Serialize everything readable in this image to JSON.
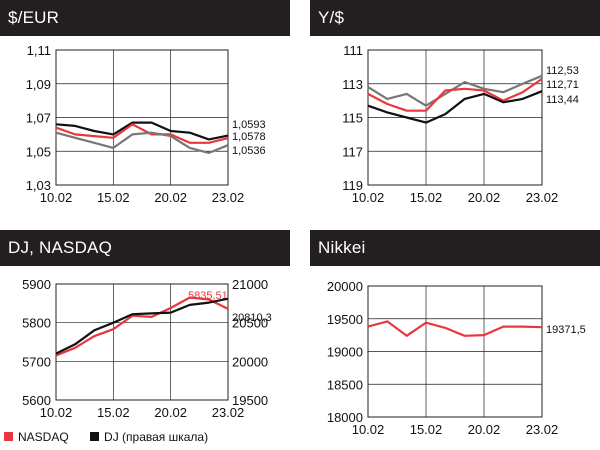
{
  "legend": {
    "nasdaq_label": "NASDAQ",
    "dj_label": "DJ (правая шкала)",
    "nasdaq_color": "#e8383d",
    "dj_color": "#111111"
  },
  "chart_data": [
    {
      "type": "line",
      "title": "$/EUR",
      "x_ticks": [
        "10.02",
        "15.02",
        "20.02",
        "23.02"
      ],
      "ylim": [
        1.03,
        1.11
      ],
      "y_ticks": [
        "1,11",
        "1,09",
        "1,07",
        "1,05",
        "1,03"
      ],
      "y_tick_values": [
        1.11,
        1.09,
        1.07,
        1.05,
        1.03
      ],
      "grid": true,
      "series": [
        {
          "color": "#111111",
          "x": [
            0,
            1,
            2,
            3,
            4,
            5,
            6,
            7,
            8,
            9
          ],
          "values": [
            1.066,
            1.065,
            1.062,
            1.06,
            1.067,
            1.067,
            1.062,
            1.061,
            1.057,
            1.0593
          ],
          "end_label": "1,0593"
        },
        {
          "color": "#e8383d",
          "x": [
            0,
            1,
            2,
            3,
            4,
            5,
            6,
            7,
            8,
            9
          ],
          "values": [
            1.064,
            1.06,
            1.059,
            1.058,
            1.066,
            1.06,
            1.06,
            1.055,
            1.055,
            1.0578
          ],
          "end_label": "1,0578"
        },
        {
          "color": "#777777",
          "x": [
            0,
            1,
            2,
            3,
            4,
            5,
            6,
            7,
            8,
            9
          ],
          "values": [
            1.061,
            1.058,
            1.055,
            1.052,
            1.06,
            1.061,
            1.059,
            1.052,
            1.049,
            1.0536
          ],
          "end_label": "1,0536"
        }
      ]
    },
    {
      "type": "line",
      "title": "Y/$",
      "x_ticks": [
        "10.02",
        "15.02",
        "20.02",
        "23.02"
      ],
      "ylim": [
        111,
        119
      ],
      "y_inverted": true,
      "y_ticks": [
        "111",
        "113",
        "115",
        "117",
        "119"
      ],
      "y_tick_values": [
        111,
        113,
        115,
        117,
        119
      ],
      "grid": true,
      "series": [
        {
          "color": "#777777",
          "x": [
            0,
            1,
            2,
            3,
            4,
            5,
            6,
            7,
            8,
            9
          ],
          "values": [
            113.2,
            113.9,
            113.6,
            114.3,
            113.6,
            112.9,
            113.3,
            113.5,
            113.0,
            112.53
          ],
          "end_label": "112,53"
        },
        {
          "color": "#e8383d",
          "x": [
            0,
            1,
            2,
            3,
            4,
            5,
            6,
            7,
            8,
            9
          ],
          "values": [
            113.6,
            114.2,
            114.6,
            114.6,
            113.4,
            113.3,
            113.4,
            114.0,
            113.5,
            112.71
          ],
          "end_label": "112,71"
        },
        {
          "color": "#111111",
          "x": [
            0,
            1,
            2,
            3,
            4,
            5,
            6,
            7,
            8,
            9
          ],
          "values": [
            114.3,
            114.7,
            115.0,
            115.3,
            114.8,
            113.9,
            113.6,
            114.1,
            113.9,
            113.44
          ],
          "end_label": "113,44"
        }
      ]
    },
    {
      "type": "line",
      "title": "DJ, NASDAQ",
      "x_ticks": [
        "10.02",
        "15.02",
        "20.02",
        "23.02"
      ],
      "ylim": [
        5600,
        5900
      ],
      "y_ticks": [
        "5900",
        "5800",
        "5700",
        "5600"
      ],
      "y_tick_values": [
        5900,
        5800,
        5700,
        5600
      ],
      "y2lim": [
        19500,
        21000
      ],
      "y2_ticks": [
        "21000",
        "20500",
        "20000",
        "19500"
      ],
      "y2_tick_values": [
        21000,
        20500,
        20000,
        19500
      ],
      "grid": true,
      "series": [
        {
          "name": "NASDAQ",
          "color": "#e8383d",
          "axis": "left",
          "x": [
            0,
            1,
            2,
            3,
            4,
            5,
            6,
            7,
            8,
            9
          ],
          "values": [
            5715,
            5735,
            5765,
            5783,
            5818,
            5815,
            5838,
            5865,
            5860,
            5835.51
          ],
          "end_label": "5835,51"
        },
        {
          "name": "DJ (правая шкала)",
          "color": "#111111",
          "axis": "right",
          "x": [
            0,
            1,
            2,
            3,
            4,
            5,
            6,
            7,
            8,
            9
          ],
          "values": [
            20100,
            20220,
            20400,
            20500,
            20610,
            20620,
            20630,
            20730,
            20760,
            20810.3
          ],
          "end_label": "20810,3"
        }
      ]
    },
    {
      "type": "line",
      "title": "Nikkei",
      "x_ticks": [
        "10.02",
        "15.02",
        "20.02",
        "23.02"
      ],
      "ylim": [
        18000,
        20000
      ],
      "y_ticks": [
        "20000",
        "19500",
        "19000",
        "18500",
        "18000"
      ],
      "y_tick_values": [
        20000,
        19500,
        19000,
        18500,
        18000
      ],
      "grid": true,
      "series": [
        {
          "color": "#e8383d",
          "x": [
            0,
            1,
            2,
            3,
            4,
            5,
            6,
            7,
            8,
            9
          ],
          "values": [
            19380,
            19460,
            19240,
            19440,
            19360,
            19240,
            19250,
            19380,
            19380,
            19371.5
          ],
          "end_label": "19371,5"
        }
      ]
    }
  ]
}
